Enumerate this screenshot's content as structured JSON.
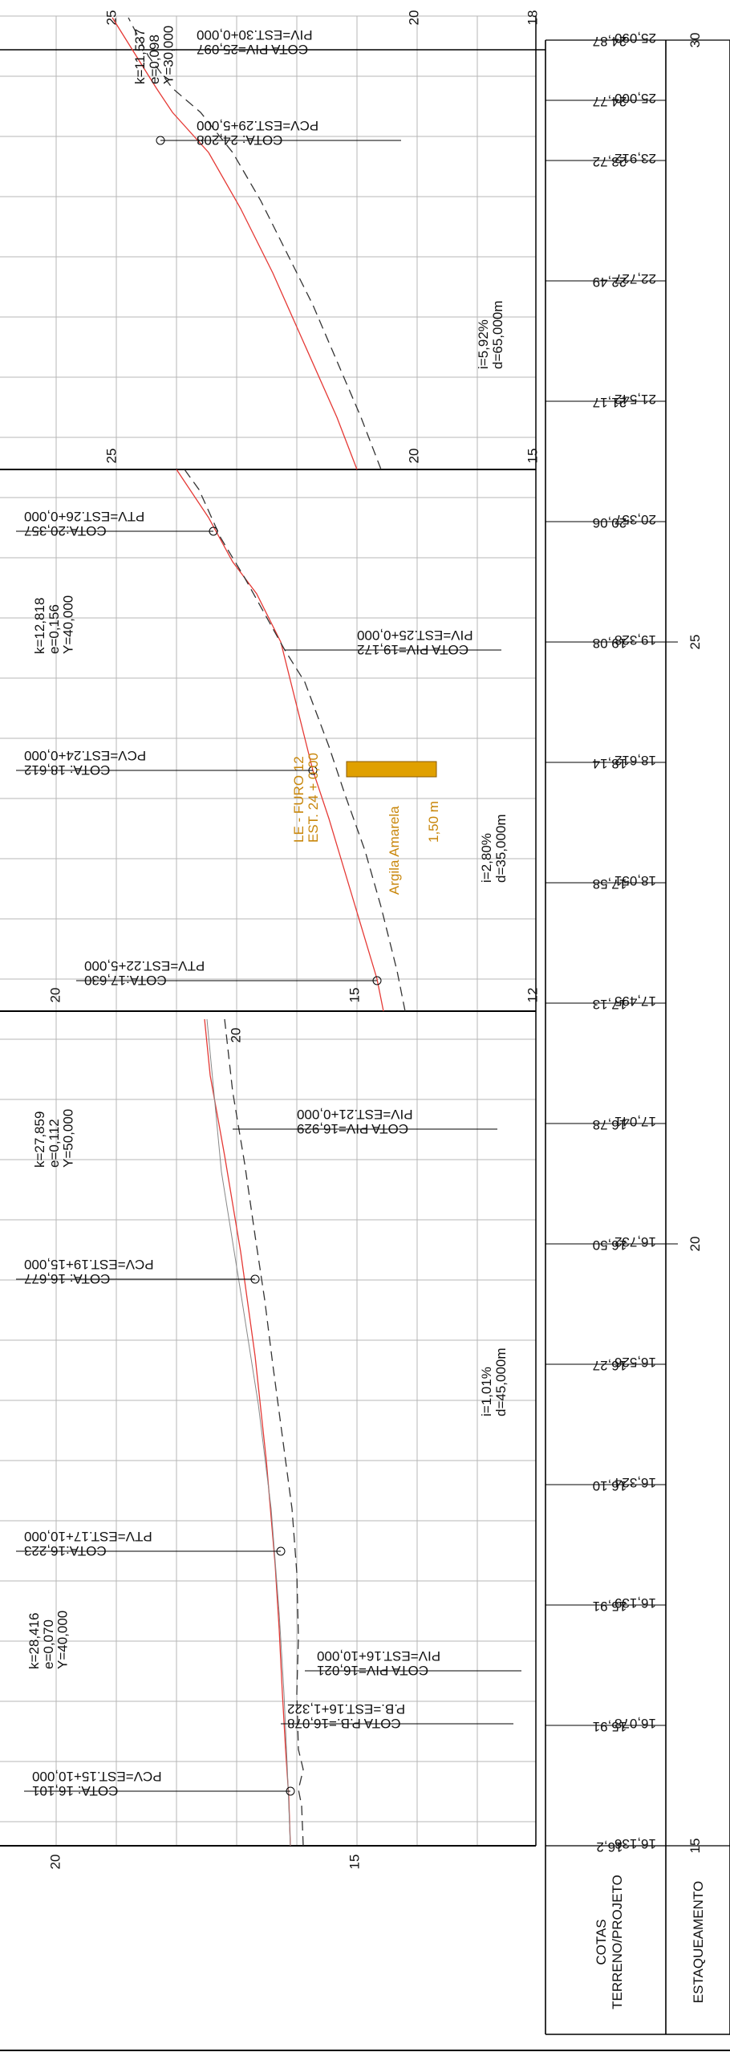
{
  "title_block": {
    "row_terrain_projeto": "COTAS\nTERRENO/PROJETO",
    "row_stationing": "ESTAQUEAMENTO"
  },
  "station_labels": [
    {
      "text": "15",
      "station": 15
    },
    {
      "text": "20",
      "station": 20
    },
    {
      "text": "25",
      "station": 25
    },
    {
      "text": "30",
      "station": 30
    }
  ],
  "elevation_pairs": [
    {
      "station": 15,
      "terrain": "16,136",
      "project": "16,2"
    },
    {
      "station": 16,
      "terrain": "16,078",
      "project": "15,91"
    },
    {
      "station": 17,
      "terrain": "16,139",
      "project": "15,91"
    },
    {
      "station": 18,
      "terrain": "16,324",
      "project": "16,10"
    },
    {
      "station": 19,
      "terrain": "16,526",
      "project": "16,27"
    },
    {
      "station": 20,
      "terrain": "16,732",
      "project": "16,50"
    },
    {
      "station": 21,
      "terrain": "17,041",
      "project": "16,78"
    },
    {
      "station": 22,
      "terrain": "17,495",
      "project": "17,13"
    },
    {
      "station": 23,
      "terrain": "18,051",
      "project": "17,58"
    },
    {
      "station": 24,
      "terrain": "18,612",
      "project": "18,14"
    },
    {
      "station": 25,
      "terrain": "19,328",
      "project": "19,08"
    },
    {
      "station": 26,
      "terrain": "20,357",
      "project": "20,06"
    },
    {
      "station": 27,
      "terrain": "21,542",
      "project": "21,17"
    },
    {
      "station": 28,
      "terrain": "22,727",
      "project": "22,49"
    },
    {
      "station": 29,
      "terrain": "23,912",
      "project": "23,72"
    },
    {
      "station": 29.5,
      "terrain": "25,000",
      "project": "24,77"
    },
    {
      "station": 30,
      "terrain": "25,090",
      "project": "24,87"
    }
  ],
  "panels": [
    {
      "station_from": 15,
      "station_to": 22,
      "elev_ticks": [
        {
          "value": 20,
          "text": "20"
        },
        {
          "value": 15,
          "text": "15"
        }
      ]
    },
    {
      "station_from": 22,
      "station_to": 26.5,
      "elev_ticks": [
        {
          "value": 20,
          "text": "20"
        },
        {
          "value": 15,
          "text": "15"
        },
        {
          "value": 12,
          "text": "12"
        }
      ]
    },
    {
      "station_from": 26.5,
      "station_to": 30,
      "elev_ticks": [
        {
          "value": 25,
          "text": "25"
        },
        {
          "value": 20,
          "text": "20"
        },
        {
          "value": 18,
          "text": "18"
        }
      ]
    },
    {
      "station_from": 26.5,
      "station_to": 30,
      "elev_ticks": [
        {
          "value": 25,
          "text": "25"
        },
        {
          "value": 20,
          "text": "20"
        },
        {
          "value": 15,
          "text": "15"
        }
      ]
    }
  ],
  "profile_annotations": [
    {
      "id": "pcv-15",
      "lines": [
        "COTA: 16,101",
        "PCV=EST.15+10,000"
      ],
      "side": "left"
    },
    {
      "id": "pb-16",
      "lines": [
        "COTA P.B.=16,078",
        "P.B.=EST.16+1,322"
      ],
      "side": "right"
    },
    {
      "id": "piv-16",
      "lines": [
        "COTA PIV=16,021",
        "PIV=EST.16+10,000"
      ],
      "side": "right"
    },
    {
      "id": "ptv-17",
      "lines": [
        "COTA:16,223",
        "PTV=EST.17+10,000"
      ],
      "side": "left"
    },
    {
      "id": "pcv-19",
      "lines": [
        "COTA: 16,677",
        "PCV=EST.19+15,000"
      ],
      "side": "left"
    },
    {
      "id": "piv-21",
      "lines": [
        "COTA PIV=16,929",
        "PIV=EST.21+0,000"
      ],
      "side": "right"
    },
    {
      "id": "ptv-22",
      "lines": [
        "COTA:17,630",
        "PTV=EST.22+5,000"
      ],
      "side": "left"
    },
    {
      "id": "pcv-24",
      "lines": [
        "COTA: 18,612",
        "PCV=EST.24+0,000"
      ],
      "side": "left"
    },
    {
      "id": "piv-25",
      "lines": [
        "COTA PIV=19,172",
        "PIV=EST.25+0,000"
      ],
      "side": "right"
    },
    {
      "id": "ptv-26",
      "lines": [
        "COTA:20,357",
        "PTV=EST.26+0,000"
      ],
      "side": "left"
    },
    {
      "id": "pcv-29",
      "lines": [
        "COTA: 24,208",
        "PCV=EST.29+5,000"
      ],
      "side": "left"
    },
    {
      "id": "piv-30",
      "lines": [
        "COTA PIV=25,097",
        "PIV=EST.30+0,000"
      ],
      "side": "right"
    }
  ],
  "curve_parameters": [
    {
      "lines": [
        "k=28,416",
        "e=0,070",
        "Y=40,000"
      ]
    },
    {
      "lines": [
        "k=27,859",
        "e=0,112",
        "Y=50,000"
      ]
    },
    {
      "lines": [
        "k=12,818",
        "e=0,156",
        "Y=40,000"
      ]
    },
    {
      "lines": [
        "k=11,537",
        "e=0,098",
        "Y=30,000"
      ]
    }
  ],
  "grades": [
    {
      "lines": [
        "i=1,01%",
        "d=45,000m"
      ]
    },
    {
      "lines": [
        "i=2,80%",
        "d=35,000m"
      ]
    },
    {
      "lines": [
        "i=5,92%",
        "d=65,000m"
      ]
    }
  ],
  "borehole": {
    "label_lines": [
      "LE - FURO 12",
      "EST. 24 + 0,00"
    ],
    "soil": "Argila Amarela",
    "depth": "1,50 m",
    "color": "#e0a000",
    "label_color": "#c8860a"
  },
  "colors": {
    "project_line": "#e53935",
    "terrain_line": "#333333",
    "grid": "#b7b7b7",
    "frame": "#000000"
  }
}
